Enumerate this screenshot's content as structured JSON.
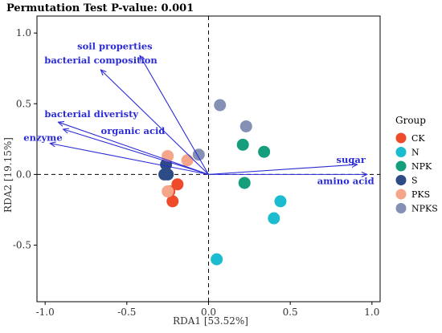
{
  "chart_data": {
    "type": "scatter",
    "title": "Permutation Test P-value: 0.001",
    "xlabel": "RDA1 [53.52%]",
    "ylabel": "RDA2 [19.15%]",
    "xlim": [
      -1.05,
      1.05
    ],
    "ylim": [
      -0.9,
      1.12
    ],
    "xticks": [
      -1.0,
      -0.5,
      0.0,
      0.5,
      1.0
    ],
    "xtick_labels": [
      "-1.0",
      "-0.5",
      "0.0",
      "0.5",
      "1.0"
    ],
    "yticks": [
      -0.5,
      0.0,
      0.5,
      1.0
    ],
    "ytick_labels": [
      "-0.5",
      "0.0",
      "0.5",
      "1.0"
    ],
    "grid": false,
    "reference_lines": {
      "x": 0,
      "y": 0,
      "style": "dashed"
    },
    "legend": {
      "title": "Group",
      "position": "right"
    },
    "arrow_color": "#2b2bd6",
    "series": [
      {
        "name": "CK",
        "color": "#ee4b2b",
        "points": [
          [
            -0.19,
            -0.07
          ],
          [
            -0.24,
            -0.12
          ],
          [
            -0.22,
            -0.19
          ]
        ]
      },
      {
        "name": "N",
        "color": "#1bbcd0",
        "points": [
          [
            0.44,
            -0.19
          ],
          [
            0.4,
            -0.31
          ],
          [
            0.05,
            -0.6
          ]
        ]
      },
      {
        "name": "NPK",
        "color": "#149e7c",
        "points": [
          [
            0.21,
            0.21
          ],
          [
            0.34,
            0.16
          ],
          [
            0.22,
            -0.06
          ]
        ]
      },
      {
        "name": "S",
        "color": "#2d4b84",
        "points": [
          [
            -0.26,
            0.07
          ],
          [
            -0.27,
            0.0
          ],
          [
            -0.25,
            0.0
          ]
        ]
      },
      {
        "name": "PKS",
        "color": "#f4a58a",
        "points": [
          [
            -0.25,
            0.13
          ],
          [
            -0.13,
            0.1
          ],
          [
            -0.25,
            -0.12
          ]
        ]
      },
      {
        "name": "NPKS",
        "color": "#8491b4",
        "points": [
          [
            0.07,
            0.49
          ],
          [
            0.23,
            0.34
          ],
          [
            -0.06,
            0.14
          ]
        ]
      }
    ],
    "arrows": [
      {
        "label": "soil properties",
        "x": -0.42,
        "y": 0.84
      },
      {
        "label": "bacterial composition",
        "x": -0.66,
        "y": 0.74
      },
      {
        "label": "bacterial diveristy",
        "x": -0.92,
        "y": 0.37
      },
      {
        "label": "organic acid",
        "x": -0.89,
        "y": 0.32
      },
      {
        "label": "enzyme",
        "x": -0.97,
        "y": 0.22
      },
      {
        "label": "sugar",
        "x": 0.91,
        "y": 0.07
      },
      {
        "label": "amino acid",
        "x": 0.97,
        "y": 0.0
      }
    ]
  }
}
